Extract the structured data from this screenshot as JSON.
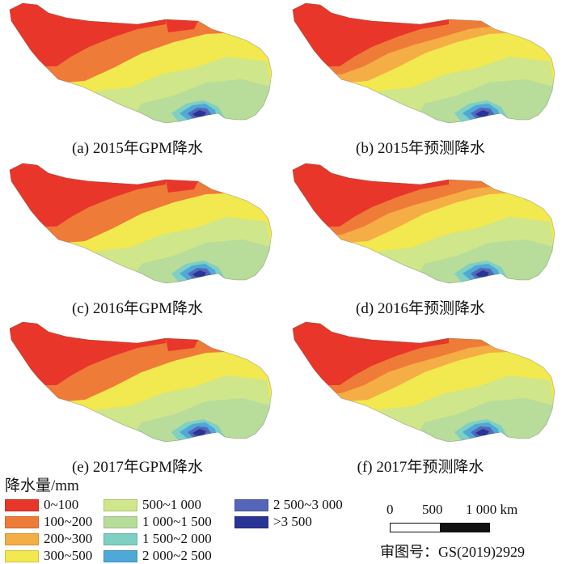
{
  "panels": [
    {
      "caption": "(a) 2015年GPM降水",
      "kind": "gpm"
    },
    {
      "caption": "(b) 2015年预测降水",
      "kind": "pred"
    },
    {
      "caption": "(c) 2016年GPM降水",
      "kind": "gpm"
    },
    {
      "caption": "(d) 2016年预测降水",
      "kind": "pred"
    },
    {
      "caption": "(e) 2017年GPM降水",
      "kind": "gpm"
    },
    {
      "caption": "(f) 2017年预测降水",
      "kind": "pred"
    }
  ],
  "legend": {
    "title": "降水量/mm",
    "items": [
      {
        "label": "0~100",
        "color": "#e8362a"
      },
      {
        "label": "100~200",
        "color": "#ef7b39"
      },
      {
        "label": "200~300",
        "color": "#f5ad45"
      },
      {
        "label": "300~500",
        "color": "#f2e84f"
      },
      {
        "label": "500~1 000",
        "color": "#cfe68a"
      },
      {
        "label": "1 000~1 500",
        "color": "#b8dc9a"
      },
      {
        "label": "1 500~2 000",
        "color": "#7fcfc3"
      },
      {
        "label": "2 000~2 500",
        "color": "#4ea9d8"
      },
      {
        "label": "2 500~3 000",
        "color": "#5566b8"
      },
      {
        "label": ">3 500",
        "color": "#2a3495"
      }
    ]
  },
  "scalebar": {
    "ticks": [
      "0",
      "500",
      "1 000 km"
    ]
  },
  "approval_number": "审图号：GS(2019)2929"
}
